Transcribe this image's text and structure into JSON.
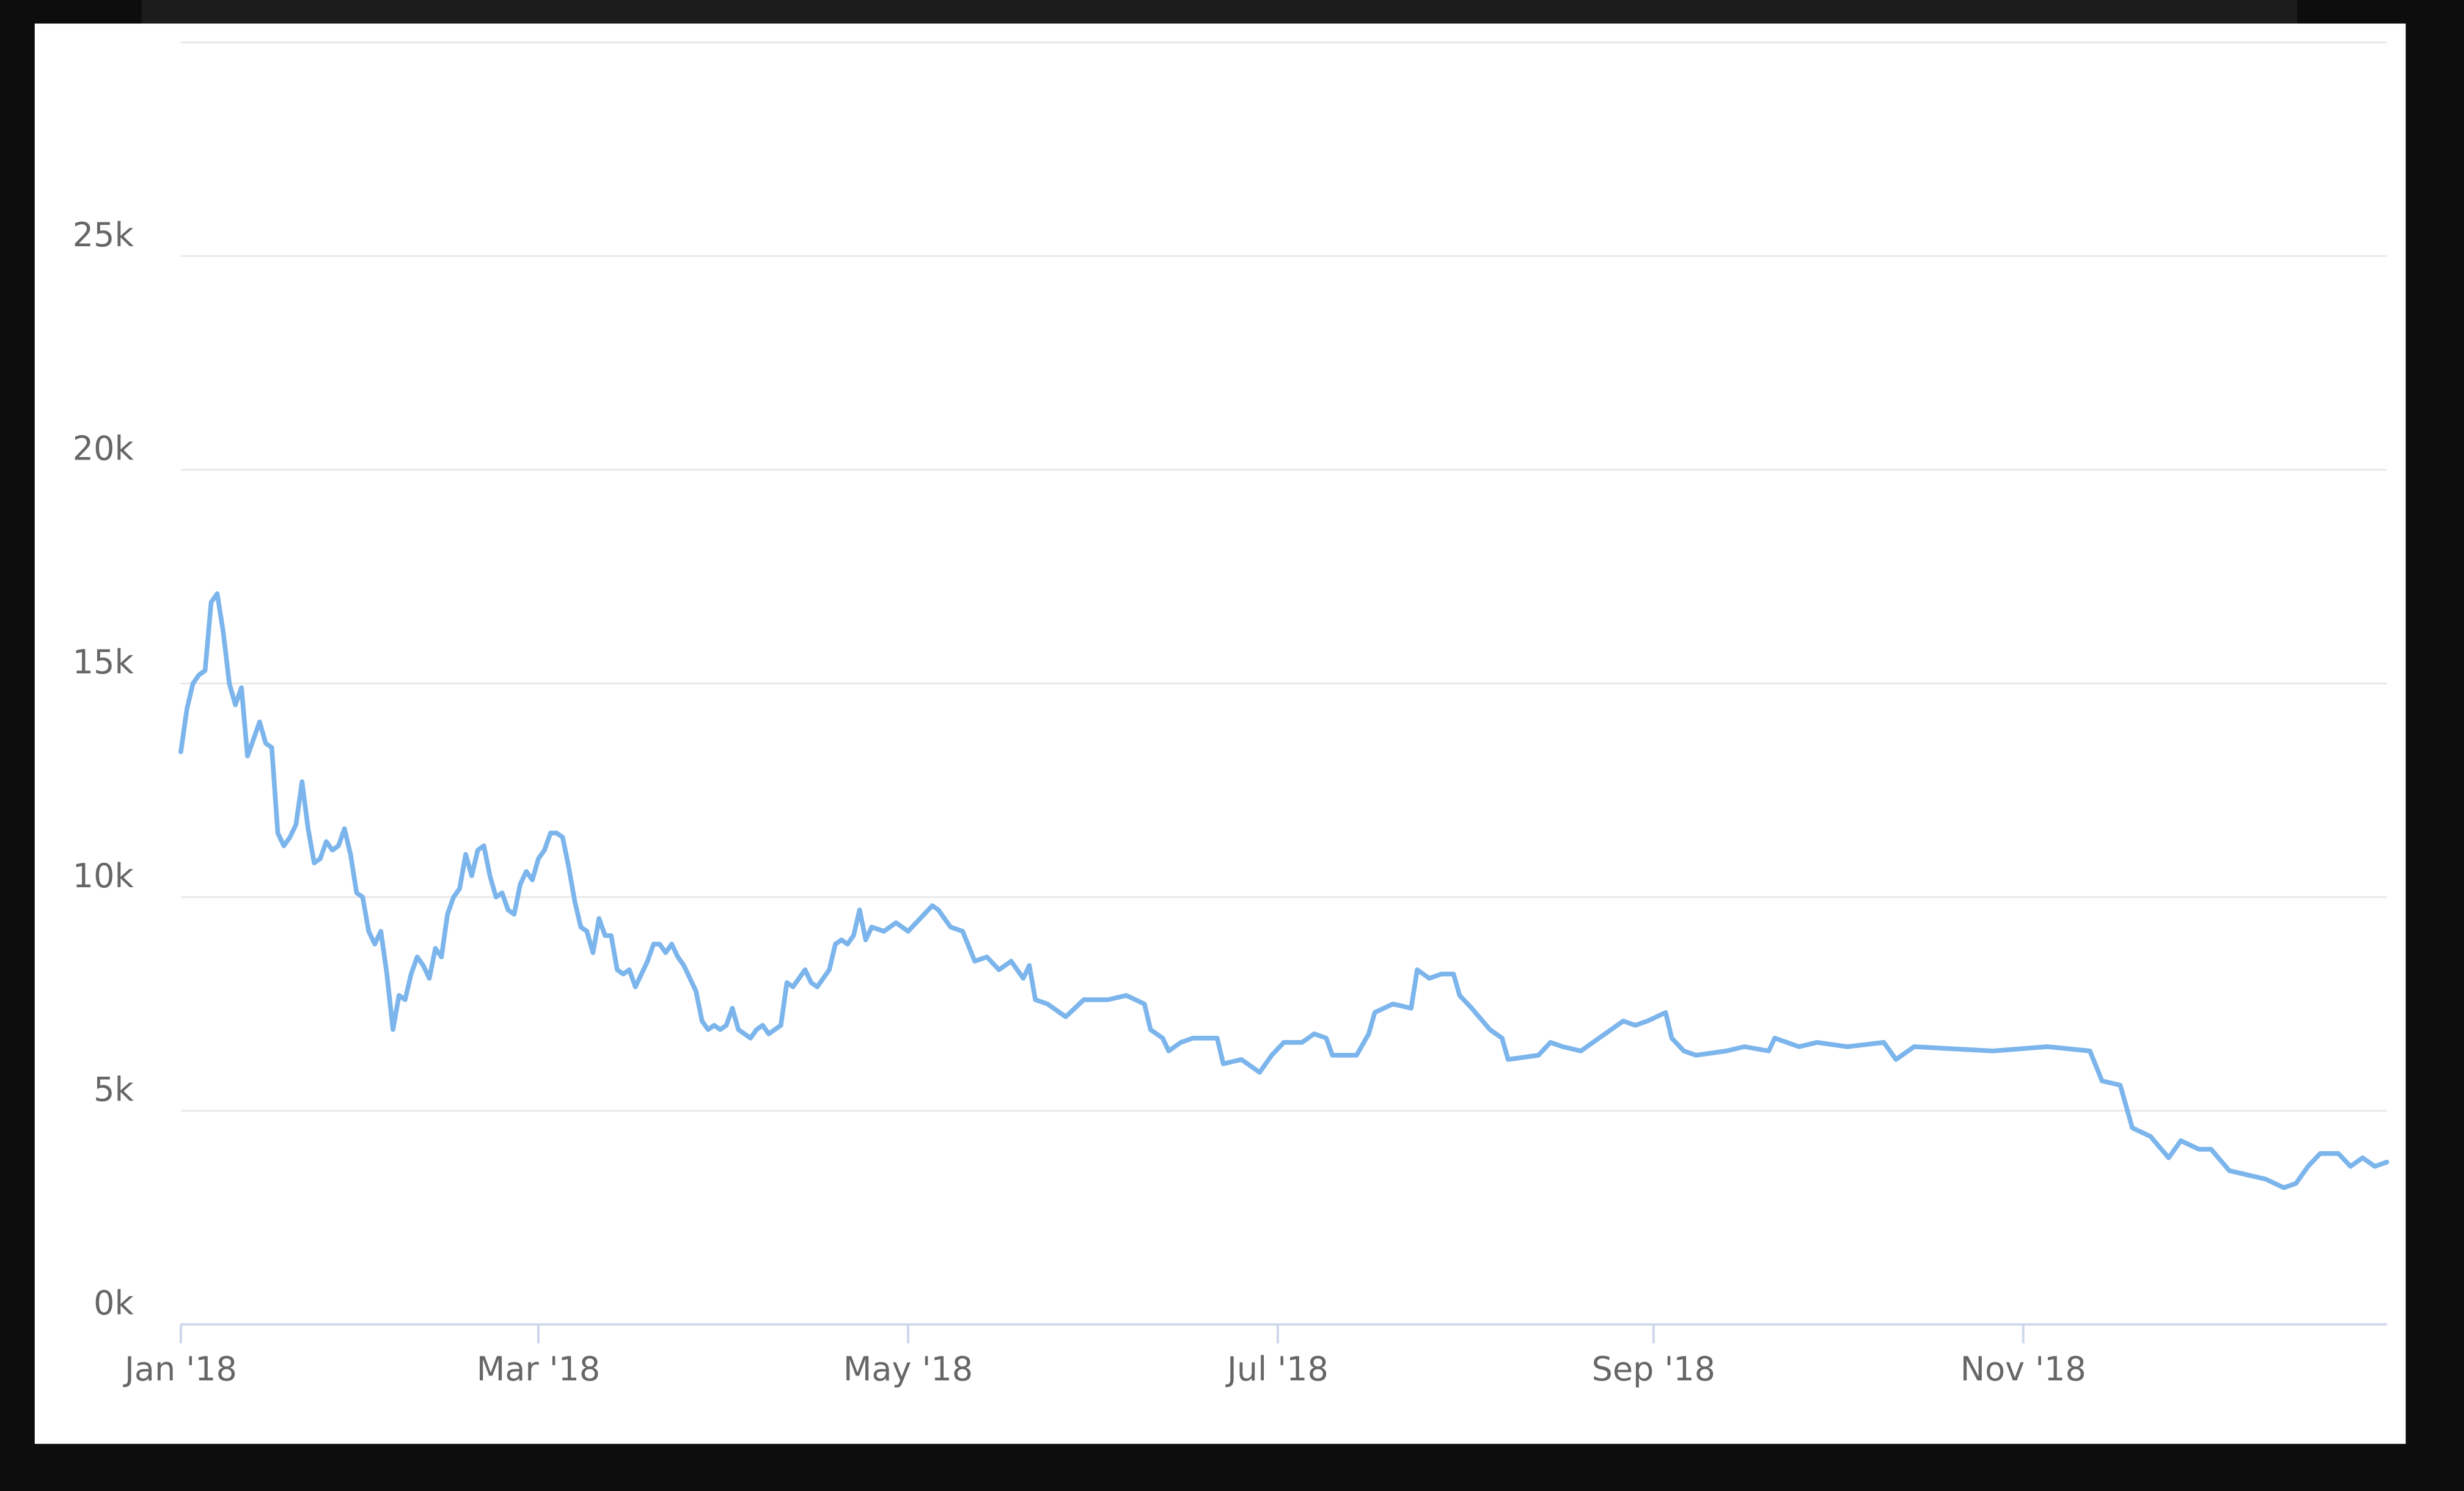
{
  "chart_data": {
    "type": "line",
    "x": [
      0,
      1,
      2,
      3,
      4,
      5,
      6,
      7,
      8,
      9,
      10,
      11,
      12,
      13,
      14,
      15,
      16,
      17,
      18,
      19,
      20,
      21,
      22,
      23,
      24,
      25,
      26,
      27,
      28,
      29,
      30,
      31,
      32,
      33,
      34,
      35,
      36,
      37,
      38,
      39,
      40,
      41,
      42,
      43,
      44,
      45,
      46,
      47,
      48,
      49,
      50,
      51,
      52,
      53,
      54,
      55,
      56,
      57,
      58,
      59,
      60,
      61,
      62,
      63,
      64,
      65,
      66,
      67,
      68,
      69,
      70,
      71,
      72,
      73,
      74,
      75,
      76,
      77,
      78,
      79,
      80,
      81,
      82,
      83,
      84,
      85,
      86,
      87,
      88,
      89,
      90,
      91,
      92,
      93,
      94,
      95,
      96,
      97,
      98,
      99,
      100,
      101,
      102,
      103,
      104,
      105,
      106,
      107,
      108,
      109,
      110,
      111,
      112,
      113,
      114,
      116,
      118,
      120,
      122,
      124,
      125,
      127,
      129,
      131,
      133,
      135,
      137,
      139,
      140,
      141,
      143,
      146,
      149,
      153,
      156,
      159,
      160,
      162,
      163,
      165,
      167,
      171,
      172,
      175,
      178,
      180,
      182,
      185,
      187,
      189,
      190,
      194,
      196,
      197,
      200,
      203,
      204,
      206,
      208,
      210,
      211,
      213,
      216,
      218,
      219,
      224,
      226,
      228,
      231,
      235,
      238,
      240,
      242,
      245,
      246,
      248,
      250,
      255,
      258,
      262,
      263,
      265,
      267,
      270,
      275,
      281,
      283,
      286,
      299,
      308,
      315,
      317,
      320,
      322,
      325,
      328,
      330,
      333,
      335,
      338,
      341,
      344,
      347,
      349,
      351,
      353,
      356,
      358,
      360,
      362,
      364
    ],
    "series": [
      {
        "color": "#7cb5ec",
        "values": [
          13400,
          14400,
          15000,
          15200,
          15300,
          16900,
          17100,
          16200,
          15000,
          14500,
          14900,
          13300,
          13700,
          14100,
          13600,
          13500,
          11500,
          11200,
          11400,
          11700,
          12700,
          11600,
          10800,
          10900,
          11300,
          11100,
          11200,
          11600,
          11000,
          10100,
          10000,
          9200,
          8900,
          9200,
          8200,
          6900,
          7700,
          7600,
          8200,
          8600,
          8400,
          8100,
          8800,
          8600,
          9600,
          10000,
          10200,
          11000,
          10500,
          11100,
          11200,
          10500,
          10000,
          10100,
          9700,
          9600,
          10300,
          10600,
          10400,
          10900,
          11100,
          11500,
          11500,
          11400,
          10700,
          9900,
          9300,
          9200,
          8700,
          9500,
          9100,
          9100,
          8300,
          8200,
          8300,
          7900,
          8200,
          8500,
          8900,
          8900,
          8700,
          8900,
          8600,
          8400,
          8100,
          7800,
          7100,
          6900,
          7000,
          6900,
          7000,
          7400,
          6900,
          6800,
          6700,
          6900,
          7000,
          6800,
          6900,
          7000,
          8000,
          7900,
          8100,
          8300,
          8000,
          7900,
          8100,
          8300,
          8900,
          9000,
          8900,
          9100,
          9700,
          9000,
          9300,
          9200,
          9400,
          9200,
          9500,
          9800,
          9700,
          9300,
          9200,
          8500,
          8600,
          8300,
          8500,
          8100,
          8400,
          7600,
          7500,
          7200,
          7600,
          7600,
          7700,
          7500,
          6900,
          6700,
          6400,
          6600,
          6700,
          6700,
          6100,
          6200,
          5900,
          6300,
          6600,
          6600,
          6800,
          6700,
          6300,
          6300,
          6800,
          7300,
          7500,
          7400,
          8300,
          8100,
          8200,
          8200,
          7700,
          7400,
          6900,
          6700,
          6200,
          6300,
          6600,
          6500,
          6400,
          6800,
          7100,
          7000,
          7100,
          7300,
          6700,
          6400,
          6300,
          6400,
          6500,
          6400,
          6700,
          6600,
          6500,
          6600,
          6500,
          6600,
          6200,
          6500,
          6400,
          6500,
          6400,
          5700,
          5600,
          4600,
          4400,
          3900,
          4300,
          4100,
          4100,
          3600,
          3500,
          3400,
          3200,
          3300,
          3700,
          4000,
          4000,
          3700,
          3900,
          3700,
          3800
        ]
      }
    ],
    "xlim": [
      0,
      364
    ],
    "xticks": [
      {
        "value": 0,
        "label": "Jan '18"
      },
      {
        "value": 59,
        "label": "Mar '18"
      },
      {
        "value": 120,
        "label": "May '18"
      },
      {
        "value": 181,
        "label": "Jul '18"
      },
      {
        "value": 243,
        "label": "Sep '18"
      },
      {
        "value": 304,
        "label": "Nov '18"
      }
    ],
    "ylim": [
      0,
      30000
    ],
    "yticks": [
      {
        "value": 0,
        "label": "0k"
      },
      {
        "value": 5000,
        "label": "5k"
      },
      {
        "value": 10000,
        "label": "10k"
      },
      {
        "value": 15000,
        "label": "15k"
      },
      {
        "value": 20000,
        "label": "20k"
      },
      {
        "value": 25000,
        "label": "25k"
      }
    ],
    "grid": true
  }
}
